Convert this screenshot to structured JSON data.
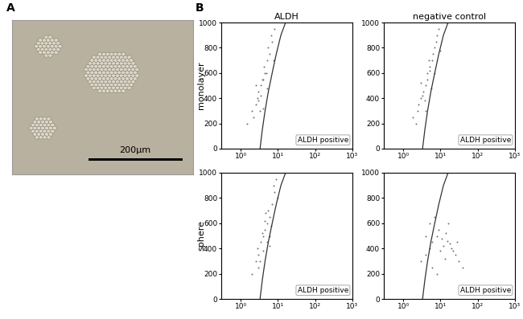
{
  "figure": {
    "panel_labels": [
      "A",
      "B"
    ],
    "column_titles": [
      "ALDH",
      "negative control"
    ],
    "row_labels": [
      "monolayer",
      "sphere"
    ]
  },
  "image": {
    "scale_bar": "200µm"
  },
  "chart_data": [
    {
      "type": "scatter",
      "log": "x",
      "color": "#707070",
      "x": [
        1.5,
        2,
        2.5,
        3,
        3.5,
        4,
        4.5,
        5,
        6,
        7,
        2.2,
        2.8,
        3.2,
        3.8,
        4.2,
        5.5,
        6.5,
        8,
        2.6,
        3.4,
        4.8,
        5.2,
        7.5,
        3,
        4
      ],
      "y": [
        200,
        300,
        350,
        450,
        500,
        550,
        600,
        700,
        750,
        850,
        250,
        400,
        300,
        550,
        650,
        800,
        900,
        950,
        500,
        420,
        600,
        480,
        700,
        380,
        320
      ],
      "gate": {
        "x": [
          3.3,
          3.8,
          4.5,
          5.5,
          7,
          9,
          12,
          16
        ],
        "y": [
          0,
          150,
          300,
          450,
          600,
          750,
          900,
          1000
        ]
      },
      "annotations": [
        "ALDH positive"
      ],
      "xlim": [
        0.3,
        1000
      ],
      "xticks": [
        {
          "value": 1,
          "label": "10⁰"
        },
        {
          "value": 10,
          "label": "10¹"
        },
        {
          "value": 100,
          "label": "10²"
        },
        {
          "value": 1000,
          "label": "10³"
        }
      ],
      "ylim": [
        0,
        1000
      ],
      "yticks": [
        0,
        200,
        400,
        600,
        800,
        1000
      ]
    },
    {
      "type": "scatter",
      "log": "x",
      "color": "#707070",
      "x": [
        1.8,
        2.4,
        3,
        3.5,
        4,
        4.5,
        5,
        6,
        7,
        8,
        2.6,
        3.2,
        3.8,
        4.4,
        5.2,
        6.4,
        7.6,
        9,
        3,
        4,
        5.6,
        6.8,
        2.2,
        4.8,
        10
      ],
      "y": [
        250,
        300,
        400,
        450,
        500,
        550,
        650,
        700,
        800,
        900,
        350,
        420,
        380,
        600,
        620,
        750,
        850,
        950,
        520,
        300,
        480,
        600,
        200,
        700,
        780
      ],
      "gate": {
        "x": [
          3.3,
          3.8,
          4.5,
          5.5,
          7,
          9,
          12,
          16
        ],
        "y": [
          0,
          150,
          300,
          450,
          600,
          750,
          900,
          1000
        ]
      },
      "annotations": [
        "ALDH positive"
      ],
      "xlim": [
        0.3,
        1000
      ],
      "xticks": [
        {
          "value": 1,
          "label": "10⁰"
        },
        {
          "value": 10,
          "label": "10¹"
        },
        {
          "value": 100,
          "label": "10²"
        },
        {
          "value": 1000,
          "label": "10³"
        }
      ],
      "ylim": [
        0,
        1000
      ],
      "yticks": [
        0,
        200,
        400,
        600,
        800,
        1000
      ]
    },
    {
      "type": "scatter",
      "log": "x",
      "color": "#707070",
      "x": [
        2,
        2.5,
        3,
        3.5,
        4,
        4.5,
        5,
        6,
        7,
        8,
        2.8,
        3.3,
        3.8,
        4.3,
        5.5,
        6.5,
        7.5,
        9,
        10,
        4,
        5,
        6,
        3,
        4.6,
        5.8
      ],
      "y": [
        200,
        300,
        350,
        450,
        500,
        550,
        600,
        650,
        750,
        850,
        400,
        300,
        520,
        620,
        700,
        580,
        900,
        950,
        800,
        380,
        450,
        500,
        250,
        680,
        420
      ],
      "gate": {
        "x": [
          3.3,
          3.8,
          4.5,
          5.5,
          7,
          9,
          12,
          16
        ],
        "y": [
          0,
          150,
          300,
          450,
          600,
          750,
          900,
          1000
        ]
      },
      "annotations": [
        "ALDH positive"
      ],
      "xlim": [
        0.3,
        1000
      ],
      "xticks": [
        {
          "value": 1,
          "label": "10⁰"
        },
        {
          "value": 10,
          "label": "10¹"
        },
        {
          "value": 100,
          "label": "10²"
        },
        {
          "value": 1000,
          "label": "10³"
        }
      ],
      "ylim": [
        0,
        1000
      ],
      "yticks": [
        0,
        200,
        400,
        600,
        800,
        1000
      ]
    },
    {
      "type": "scatter",
      "log": "x",
      "color": "#707070",
      "x": [
        3,
        4,
        5,
        6,
        8,
        10,
        12,
        15,
        20,
        25,
        30,
        40,
        5,
        7,
        9,
        11,
        14,
        18,
        22,
        6,
        8,
        13,
        16,
        4,
        28
      ],
      "y": [
        300,
        350,
        400,
        450,
        500,
        380,
        420,
        460,
        400,
        350,
        300,
        250,
        600,
        650,
        550,
        480,
        520,
        440,
        380,
        250,
        200,
        320,
        600,
        500,
        450
      ],
      "gate": {
        "x": [
          3.3,
          3.8,
          4.5,
          5.5,
          7,
          9,
          12,
          16
        ],
        "y": [
          0,
          150,
          300,
          450,
          600,
          750,
          900,
          1000
        ]
      },
      "annotations": [
        "ALDH positive"
      ],
      "xlim": [
        0.3,
        1000
      ],
      "xticks": [
        {
          "value": 1,
          "label": "10⁰"
        },
        {
          "value": 10,
          "label": "10¹"
        },
        {
          "value": 100,
          "label": "10²"
        },
        {
          "value": 1000,
          "label": "10³"
        }
      ],
      "ylim": [
        0,
        1000
      ],
      "yticks": [
        0,
        200,
        400,
        600,
        800,
        1000
      ]
    }
  ]
}
